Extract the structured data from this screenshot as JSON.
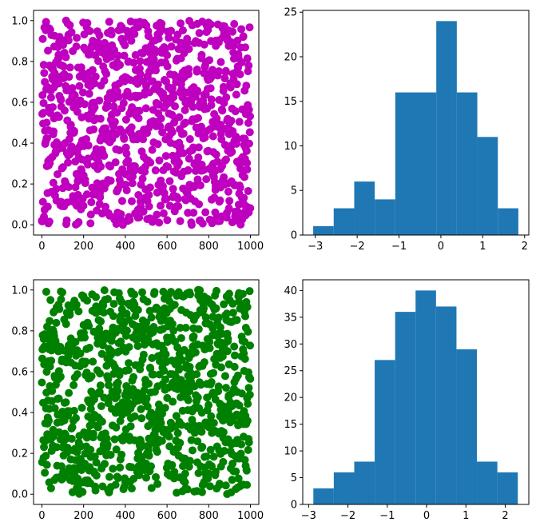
{
  "chart_data": [
    {
      "type": "scatter",
      "title": "",
      "xlabel": "",
      "ylabel": "",
      "color": "#bf00bf",
      "n_points": 1000,
      "xlim": [
        -40,
        1040
      ],
      "ylim": [
        -0.05,
        1.05
      ],
      "xticks": [
        0,
        200,
        400,
        600,
        800,
        1000
      ],
      "yticks": [
        0.0,
        0.2,
        0.4,
        0.6,
        0.8,
        1.0
      ],
      "xtick_labels": [
        "0",
        "200",
        "400",
        "600",
        "800",
        "1000"
      ],
      "ytick_labels": [
        "0.0",
        "0.2",
        "0.4",
        "0.6",
        "0.8",
        "1.0"
      ],
      "x_distribution": "0 to 999",
      "y_distribution": "uniform 0–1",
      "grid": false
    },
    {
      "type": "bar",
      "title": "",
      "xlabel": "",
      "ylabel": "",
      "color": "#1f77b4",
      "bin_edges": [
        -3.05,
        -2.56,
        -2.07,
        -1.58,
        -1.09,
        -0.6,
        -0.11,
        0.38,
        0.87,
        1.36,
        1.85
      ],
      "values": [
        1,
        3,
        6,
        4,
        16,
        16,
        24,
        16,
        11,
        3
      ],
      "xlim": [
        -3.3,
        2.1
      ],
      "ylim": [
        0,
        25.2
      ],
      "xticks": [
        -3,
        -2,
        -1,
        0,
        1,
        2
      ],
      "yticks": [
        0,
        5,
        10,
        15,
        20,
        25
      ],
      "xtick_labels": [
        "−3",
        "−2",
        "−1",
        "0",
        "1",
        "2"
      ],
      "ytick_labels": [
        "0",
        "5",
        "10",
        "15",
        "20",
        "25"
      ],
      "grid": false
    },
    {
      "type": "scatter",
      "title": "",
      "xlabel": "",
      "ylabel": "",
      "color": "#008000",
      "n_points": 1000,
      "xlim": [
        -40,
        1040
      ],
      "ylim": [
        -0.05,
        1.05
      ],
      "xticks": [
        0,
        200,
        400,
        600,
        800,
        1000
      ],
      "yticks": [
        0.0,
        0.2,
        0.4,
        0.6,
        0.8,
        1.0
      ],
      "xtick_labels": [
        "0",
        "200",
        "400",
        "600",
        "800",
        "1000"
      ],
      "ytick_labels": [
        "0.0",
        "0.2",
        "0.4",
        "0.6",
        "0.8",
        "1.0"
      ],
      "x_distribution": "0 to 999",
      "y_distribution": "uniform 0–1",
      "grid": false
    },
    {
      "type": "bar",
      "title": "",
      "xlabel": "",
      "ylabel": "",
      "color": "#1f77b4",
      "bin_edges": [
        -2.88,
        -2.36,
        -1.84,
        -1.32,
        -0.8,
        -0.28,
        0.24,
        0.76,
        1.28,
        1.8,
        2.32
      ],
      "values": [
        3,
        6,
        8,
        27,
        36,
        40,
        37,
        29,
        8,
        6
      ],
      "xlim": [
        -3.15,
        2.6
      ],
      "ylim": [
        0,
        42
      ],
      "xticks": [
        -3,
        -2,
        -1,
        0,
        1,
        2
      ],
      "yticks": [
        0,
        5,
        10,
        15,
        20,
        25,
        30,
        35,
        40
      ],
      "xtick_labels": [
        "−3",
        "−2",
        "−1",
        "0",
        "1",
        "2"
      ],
      "ytick_labels": [
        "0",
        "5",
        "10",
        "15",
        "20",
        "25",
        "30",
        "35",
        "40"
      ],
      "grid": false
    }
  ]
}
